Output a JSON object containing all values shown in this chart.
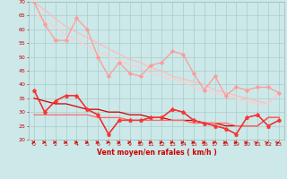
{
  "xlabel": "Vent moyen/en rafales ( km/h )",
  "background_color": "#cce8e8",
  "grid_color": "#aacccc",
  "xlim": [
    -0.5,
    23.5
  ],
  "ylim": [
    20,
    70
  ],
  "yticks": [
    20,
    25,
    30,
    35,
    40,
    45,
    50,
    55,
    60,
    65,
    70
  ],
  "xticks": [
    0,
    1,
    2,
    3,
    4,
    5,
    6,
    7,
    8,
    9,
    10,
    11,
    12,
    13,
    14,
    15,
    16,
    17,
    18,
    19,
    20,
    21,
    22,
    23
  ],
  "line_pink_jagged": {
    "x": [
      0,
      1,
      2,
      3,
      4,
      5,
      6,
      7,
      8,
      9,
      10,
      11,
      12,
      13,
      14,
      15,
      16,
      17,
      18,
      19,
      20,
      21,
      22,
      23
    ],
    "y": [
      70,
      62,
      56,
      56,
      64,
      60,
      50,
      43,
      48,
      44,
      43,
      47,
      48,
      52,
      51,
      44,
      38,
      43,
      36,
      39,
      38,
      39,
      39,
      37
    ],
    "color": "#ff9999",
    "marker": "D",
    "markersize": 2.5,
    "linewidth": 0.9
  },
  "line_pink_trend1": {
    "x": [
      0,
      1,
      2,
      3,
      4,
      5,
      6,
      7,
      8,
      9,
      10,
      11,
      12,
      13,
      14,
      15,
      16,
      17,
      18,
      19,
      20,
      21,
      22,
      23
    ],
    "y": [
      70,
      67,
      64,
      61,
      59,
      57,
      55,
      53,
      51,
      49,
      48,
      46,
      45,
      43,
      42,
      41,
      40,
      38,
      37,
      36,
      35,
      34,
      33,
      37
    ],
    "color": "#ffbbbb",
    "linewidth": 0.9
  },
  "line_pink_trend2": {
    "x": [
      0,
      1,
      2,
      3,
      4,
      5,
      6,
      7,
      8,
      9,
      10,
      11,
      12,
      13,
      14,
      15,
      16,
      17,
      18,
      19,
      20,
      21,
      22,
      23
    ],
    "y": [
      66,
      63,
      61,
      58,
      56,
      54,
      52,
      50,
      49,
      47,
      46,
      44,
      43,
      42,
      41,
      39,
      38,
      37,
      36,
      35,
      34,
      33,
      33,
      37
    ],
    "color": "#ffcccc",
    "linewidth": 0.9
  },
  "line_red_jagged": {
    "x": [
      0,
      1,
      2,
      3,
      4,
      5,
      6,
      7,
      8,
      9,
      10,
      11,
      12,
      13,
      14,
      15,
      16,
      17,
      18,
      19,
      20,
      21,
      22,
      23
    ],
    "y": [
      38,
      30,
      34,
      36,
      36,
      31,
      29,
      22,
      27,
      27,
      27,
      28,
      28,
      31,
      30,
      27,
      26,
      25,
      24,
      22,
      28,
      29,
      25,
      27
    ],
    "color": "#cc0000",
    "marker": "^",
    "markersize": 2.5,
    "linewidth": 0.9
  },
  "line_red_diamond": {
    "x": [
      0,
      1,
      2,
      3,
      4,
      5,
      6,
      7,
      8,
      9,
      10,
      11,
      12,
      13,
      14,
      15,
      16,
      17,
      18,
      19,
      20,
      21,
      22,
      23
    ],
    "y": [
      38,
      30,
      34,
      36,
      36,
      31,
      29,
      22,
      27,
      27,
      27,
      28,
      28,
      31,
      30,
      27,
      26,
      25,
      24,
      22,
      28,
      29,
      25,
      27
    ],
    "color": "#ff3333",
    "marker": "D",
    "markersize": 2.5,
    "linewidth": 0.9
  },
  "line_red_trend1": {
    "x": [
      0,
      1,
      2,
      3,
      4,
      5,
      6,
      7,
      8,
      9,
      10,
      11,
      12,
      13,
      14,
      15,
      16,
      17,
      18,
      19,
      20,
      21,
      22,
      23
    ],
    "y": [
      35,
      34,
      33,
      33,
      32,
      31,
      31,
      30,
      30,
      29,
      29,
      28,
      28,
      27,
      27,
      27,
      26,
      26,
      25,
      25,
      25,
      25,
      28,
      28
    ],
    "color": "#cc0000",
    "linewidth": 0.9
  },
  "line_red_trend2": {
    "x": [
      0,
      1,
      2,
      3,
      4,
      5,
      6,
      7,
      8,
      9,
      10,
      11,
      12,
      13,
      14,
      15,
      16,
      17,
      18,
      19,
      20,
      21,
      22,
      23
    ],
    "y": [
      29,
      29,
      29,
      29,
      29,
      29,
      28,
      28,
      28,
      27,
      27,
      27,
      27,
      27,
      27,
      26,
      26,
      26,
      26,
      25,
      25,
      25,
      28,
      28
    ],
    "color": "#ff6666",
    "linewidth": 0.9
  },
  "arrows_x": [
    0,
    1,
    2,
    3,
    4,
    5,
    6,
    7,
    8,
    9,
    10,
    11,
    12,
    13,
    14,
    15,
    16,
    17,
    18,
    19,
    20,
    21,
    22,
    23
  ],
  "arrows_angles": [
    0,
    0,
    0,
    0,
    0,
    0,
    0,
    0,
    0,
    0,
    0,
    0,
    0,
    0,
    0,
    0,
    0,
    0,
    0,
    0,
    30,
    45,
    45,
    45
  ],
  "arrow_color": "#cc0000"
}
